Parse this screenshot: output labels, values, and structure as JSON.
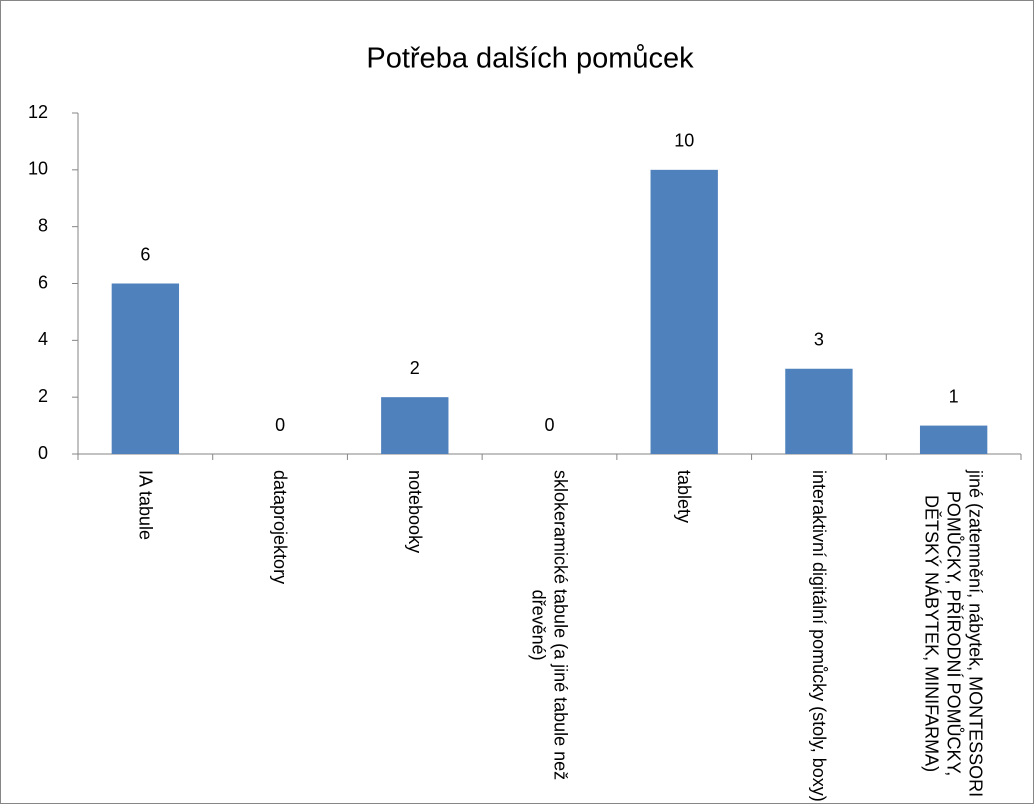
{
  "chart_data": {
    "type": "bar",
    "title": "Potřeba dalších pomůcek",
    "categories": [
      "IA tabule",
      "dataprojektory",
      "notebooky",
      "sklokeramické tabule (a jiné tabule než dřevěné)",
      "tablety",
      "interaktivní digitální pomůcky (stoly, boxy)",
      "jiné (zatemnění, nábytek, MONTESSORI POMŮCKY, PŘÍRODNÍ POMŮCKY, DĚTSKÝ NÁBYTEK, MINIFARMA)"
    ],
    "values": [
      6,
      0,
      2,
      0,
      10,
      3,
      1
    ],
    "color": "#4f81bd",
    "ylim": [
      0,
      12
    ],
    "yticks": [
      0,
      2,
      4,
      6,
      8,
      10,
      12
    ],
    "grid": false
  }
}
